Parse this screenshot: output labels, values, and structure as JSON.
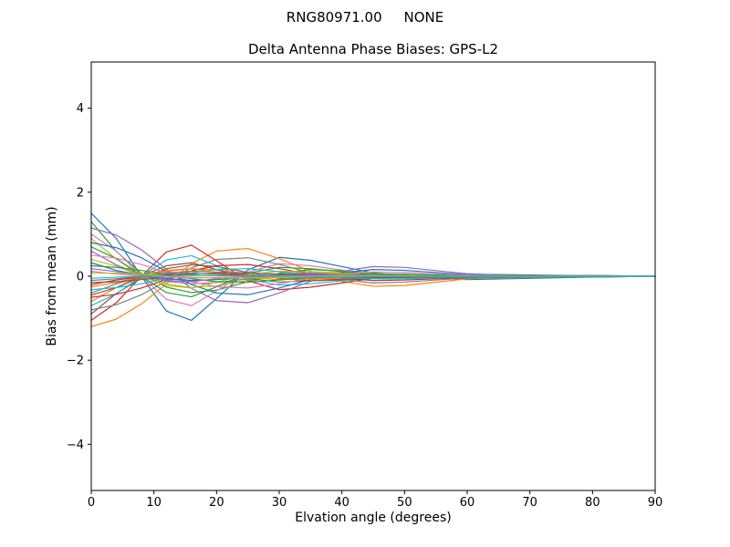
{
  "header": {
    "title_line1": "RNG80971.00     NONE",
    "title_line2": "Delta Antenna Phase Biases: GPS-L2"
  },
  "chart_data": {
    "type": "line",
    "title": "RNG80971.00     NONE",
    "subtitle": "Delta Antenna Phase Biases: GPS-L2",
    "xlabel": "Elvation angle (degrees)",
    "ylabel": "Bias from mean (mm)",
    "xlim": [
      0,
      90
    ],
    "ylim": [
      -5.1,
      5.1
    ],
    "xticks": [
      0,
      10,
      20,
      30,
      40,
      50,
      60,
      70,
      80,
      90
    ],
    "yticks": [
      -4,
      -2,
      0,
      2,
      4
    ],
    "grid": false,
    "legend": "none",
    "x": [
      0,
      4,
      8,
      12,
      16,
      20,
      25,
      30,
      35,
      40,
      45,
      50,
      60,
      70,
      80,
      90
    ],
    "series": [
      {
        "color": "#1f77b4",
        "values": [
          1.5,
          0.9,
          0.0,
          -0.83,
          -1.05,
          -0.53,
          0.15,
          0.45,
          0.38,
          0.23,
          0.08,
          0.0,
          -0.08,
          -0.05,
          -0.02,
          0.0
        ]
      },
      {
        "color": "#ff7f0e",
        "values": [
          -1.2,
          -1.02,
          -0.66,
          -0.18,
          0.3,
          0.6,
          0.66,
          0.42,
          0.12,
          -0.12,
          -0.24,
          -0.22,
          -0.06,
          0.0,
          0.02,
          0.0
        ]
      },
      {
        "color": "#2ca02c",
        "values": [
          1.3,
          0.59,
          0.07,
          -0.26,
          -0.39,
          -0.33,
          -0.13,
          0.07,
          0.16,
          0.13,
          0.07,
          0.03,
          0.0,
          0.01,
          0.0,
          0.0
        ]
      },
      {
        "color": "#d62728",
        "values": [
          -1.05,
          -0.63,
          0.0,
          0.58,
          0.74,
          0.37,
          -0.11,
          -0.32,
          -0.26,
          -0.16,
          -0.05,
          0.0,
          0.05,
          0.03,
          0.01,
          0.0
        ]
      },
      {
        "color": "#9467bd",
        "values": [
          1.15,
          0.98,
          0.63,
          0.17,
          -0.29,
          -0.58,
          -0.63,
          -0.4,
          -0.12,
          0.12,
          0.23,
          0.21,
          0.06,
          0.0,
          -0.02,
          0.0
        ]
      },
      {
        "color": "#8c564b",
        "values": [
          -0.9,
          -0.41,
          -0.05,
          0.18,
          0.27,
          0.23,
          0.09,
          -0.05,
          -0.11,
          -0.09,
          -0.05,
          -0.02,
          0.0,
          -0.01,
          0.0,
          0.0
        ]
      },
      {
        "color": "#e377c2",
        "values": [
          1.0,
          0.6,
          0.0,
          -0.55,
          -0.7,
          -0.35,
          0.1,
          0.3,
          0.25,
          0.15,
          0.05,
          0.0,
          -0.05,
          -0.03,
          -0.01,
          0.0
        ]
      },
      {
        "color": "#7f7f7f",
        "values": [
          -0.8,
          -0.68,
          -0.44,
          -0.12,
          0.2,
          0.4,
          0.44,
          0.28,
          0.08,
          -0.08,
          -0.16,
          -0.14,
          -0.04,
          0.0,
          0.02,
          0.0
        ]
      },
      {
        "color": "#bcbd22",
        "values": [
          0.9,
          0.41,
          0.05,
          -0.18,
          -0.27,
          -0.23,
          -0.09,
          0.05,
          0.11,
          0.09,
          0.05,
          0.02,
          0.0,
          0.01,
          0.0,
          0.0
        ]
      },
      {
        "color": "#17becf",
        "values": [
          -0.7,
          -0.42,
          0.0,
          0.39,
          0.49,
          0.25,
          -0.07,
          -0.21,
          -0.18,
          -0.11,
          -0.04,
          0.0,
          0.04,
          0.02,
          0.01,
          0.0
        ]
      },
      {
        "color": "#1f77b4",
        "values": [
          0.8,
          0.68,
          0.44,
          0.12,
          -0.2,
          -0.4,
          -0.44,
          -0.28,
          -0.08,
          0.08,
          0.16,
          0.14,
          0.04,
          0.0,
          -0.02,
          0.0
        ]
      },
      {
        "color": "#ff7f0e",
        "values": [
          -0.6,
          -0.27,
          -0.03,
          0.12,
          0.18,
          0.15,
          0.06,
          -0.03,
          -0.07,
          -0.06,
          -0.03,
          -0.01,
          0.0,
          -0.01,
          0.0,
          0.0
        ]
      },
      {
        "color": "#2ca02c",
        "values": [
          0.7,
          0.42,
          0.0,
          -0.39,
          -0.49,
          -0.25,
          0.07,
          0.21,
          0.18,
          0.11,
          0.04,
          0.0,
          -0.04,
          -0.02,
          -0.01,
          0.0
        ]
      },
      {
        "color": "#d62728",
        "values": [
          -0.5,
          -0.43,
          -0.28,
          -0.08,
          0.13,
          0.25,
          0.28,
          0.18,
          0.05,
          -0.05,
          -0.1,
          -0.09,
          -0.03,
          0.0,
          0.01,
          0.0
        ]
      },
      {
        "color": "#9467bd",
        "values": [
          0.6,
          0.27,
          0.03,
          -0.12,
          -0.18,
          -0.15,
          -0.06,
          0.03,
          0.07,
          0.06,
          0.03,
          0.01,
          0.0,
          0.01,
          0.0,
          0.0
        ]
      },
      {
        "color": "#8c564b",
        "values": [
          -0.45,
          -0.27,
          0.0,
          0.25,
          0.32,
          0.16,
          -0.05,
          -0.14,
          -0.11,
          -0.07,
          -0.02,
          0.0,
          0.02,
          0.01,
          0.0,
          0.0
        ]
      },
      {
        "color": "#e377c2",
        "values": [
          0.5,
          0.43,
          0.28,
          0.08,
          -0.13,
          -0.25,
          -0.28,
          -0.18,
          -0.05,
          0.05,
          0.1,
          0.09,
          0.03,
          0.0,
          -0.01,
          0.0
        ]
      },
      {
        "color": "#7f7f7f",
        "values": [
          -0.4,
          -0.18,
          -0.02,
          0.08,
          0.12,
          0.1,
          0.04,
          -0.02,
          -0.05,
          -0.04,
          -0.02,
          -0.01,
          0.0,
          0.0,
          0.0,
          0.0
        ]
      },
      {
        "color": "#bcbd22",
        "values": [
          0.4,
          0.24,
          0.0,
          -0.22,
          -0.28,
          -0.14,
          0.04,
          0.12,
          0.1,
          0.06,
          0.02,
          0.0,
          -0.02,
          -0.01,
          0.0,
          0.0
        ]
      },
      {
        "color": "#17becf",
        "values": [
          -0.32,
          -0.27,
          -0.18,
          -0.05,
          0.08,
          0.16,
          0.18,
          0.11,
          0.03,
          -0.03,
          -0.06,
          -0.06,
          -0.02,
          0.0,
          0.01,
          0.0
        ]
      },
      {
        "color": "#1f77b4",
        "values": [
          0.32,
          0.14,
          0.02,
          -0.06,
          -0.1,
          -0.08,
          -0.03,
          0.02,
          0.04,
          0.03,
          0.02,
          0.01,
          0.0,
          0.0,
          0.0,
          0.0
        ]
      },
      {
        "color": "#ff7f0e",
        "values": [
          -0.25,
          -0.15,
          0.0,
          0.14,
          0.18,
          0.09,
          -0.03,
          -0.08,
          -0.06,
          -0.04,
          -0.01,
          0.0,
          0.01,
          0.01,
          0.0,
          0.0
        ]
      },
      {
        "color": "#2ca02c",
        "values": [
          0.25,
          0.21,
          0.14,
          0.04,
          -0.06,
          -0.13,
          -0.14,
          -0.09,
          -0.03,
          0.03,
          0.05,
          0.05,
          0.01,
          0.0,
          -0.01,
          0.0
        ]
      },
      {
        "color": "#d62728",
        "values": [
          -0.2,
          -0.09,
          -0.01,
          0.04,
          0.06,
          0.05,
          0.02,
          -0.01,
          -0.02,
          -0.02,
          -0.01,
          0.0,
          0.0,
          0.0,
          0.0,
          0.0
        ]
      },
      {
        "color": "#9467bd",
        "values": [
          0.18,
          0.11,
          0.0,
          -0.1,
          -0.13,
          -0.06,
          0.02,
          0.05,
          0.05,
          0.03,
          0.01,
          0.0,
          -0.01,
          -0.01,
          0.0,
          0.0
        ]
      },
      {
        "color": "#8c564b",
        "values": [
          -0.15,
          -0.13,
          -0.08,
          -0.02,
          0.04,
          0.08,
          0.08,
          0.05,
          0.02,
          -0.02,
          -0.03,
          -0.03,
          -0.01,
          0.0,
          0.0,
          0.0
        ]
      },
      {
        "color": "#e377c2",
        "values": [
          0.12,
          0.05,
          0.01,
          -0.02,
          -0.04,
          -0.03,
          -0.01,
          0.01,
          0.01,
          0.01,
          0.01,
          0.0,
          0.0,
          0.0,
          0.0,
          0.0
        ]
      },
      {
        "color": "#7f7f7f",
        "values": [
          -0.1,
          -0.06,
          0.0,
          0.06,
          0.07,
          0.04,
          -0.01,
          -0.03,
          -0.03,
          -0.02,
          -0.01,
          0.0,
          0.01,
          0.0,
          0.0,
          0.0
        ]
      },
      {
        "color": "#bcbd22",
        "values": [
          0.08,
          0.07,
          0.04,
          0.01,
          -0.02,
          -0.04,
          -0.04,
          -0.03,
          -0.01,
          0.01,
          0.02,
          0.01,
          0.0,
          0.0,
          0.0,
          0.0
        ]
      },
      {
        "color": "#17becf",
        "values": [
          -0.05,
          -0.02,
          0.0,
          0.01,
          0.02,
          0.01,
          0.01,
          0.0,
          -0.01,
          -0.01,
          0.0,
          0.0,
          0.0,
          0.0,
          0.0,
          0.0
        ]
      }
    ]
  }
}
